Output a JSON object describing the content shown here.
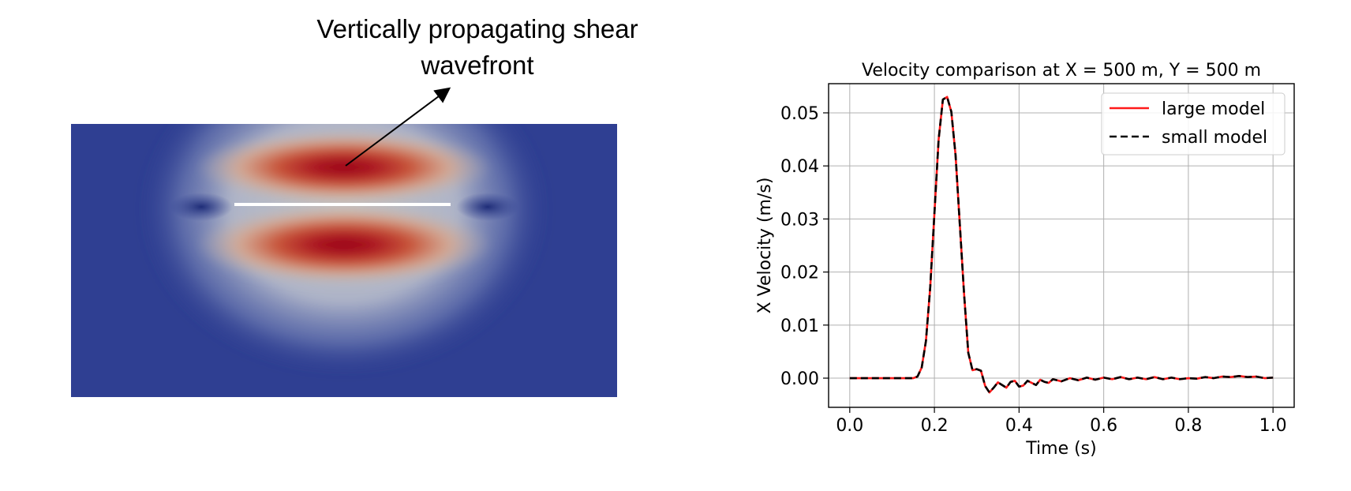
{
  "annotation": {
    "line1": "Vertically propagating shear",
    "line2": "wavefront"
  },
  "colors": {
    "field_low": "#2f3f92",
    "field_mid": "#bdbdbd",
    "field_high": "#99001f",
    "large_model": "#ff1a1a",
    "small_model": "#000000",
    "grid": "#b0b0b0"
  },
  "chart_data": {
    "type": "line",
    "title": "Velocity comparison at X = 500 m, Y = 500 m",
    "xlabel": "Time (s)",
    "ylabel": "X Velocity (m/s)",
    "xlim": [
      -0.05,
      1.05
    ],
    "ylim": [
      -0.0055,
      0.0555
    ],
    "xticks": [
      0.0,
      0.2,
      0.4,
      0.6,
      0.8,
      1.0
    ],
    "xtick_labels": [
      "0.0",
      "0.2",
      "0.4",
      "0.6",
      "0.8",
      "1.0"
    ],
    "yticks": [
      0.0,
      0.01,
      0.02,
      0.03,
      0.04,
      0.05
    ],
    "ytick_labels": [
      "0.00",
      "0.01",
      "0.02",
      "0.03",
      "0.04",
      "0.05"
    ],
    "grid": true,
    "legend_position": "top-right",
    "x": [
      0.0,
      0.02,
      0.04,
      0.06,
      0.08,
      0.1,
      0.12,
      0.14,
      0.15,
      0.16,
      0.17,
      0.18,
      0.19,
      0.2,
      0.21,
      0.22,
      0.23,
      0.24,
      0.25,
      0.26,
      0.27,
      0.28,
      0.29,
      0.3,
      0.31,
      0.32,
      0.33,
      0.34,
      0.35,
      0.36,
      0.37,
      0.38,
      0.39,
      0.4,
      0.41,
      0.42,
      0.43,
      0.44,
      0.45,
      0.46,
      0.47,
      0.48,
      0.49,
      0.5,
      0.52,
      0.54,
      0.56,
      0.58,
      0.6,
      0.62,
      0.64,
      0.66,
      0.68,
      0.7,
      0.72,
      0.74,
      0.76,
      0.78,
      0.8,
      0.82,
      0.84,
      0.86,
      0.88,
      0.9,
      0.92,
      0.94,
      0.96,
      0.98,
      1.0
    ],
    "series": [
      {
        "name": "large model",
        "style": "solid",
        "values": [
          0.0,
          0.0,
          0.0,
          0.0,
          0.0,
          0.0,
          0.0,
          0.0,
          0.0,
          0.0003,
          0.002,
          0.007,
          0.017,
          0.031,
          0.045,
          0.0525,
          0.053,
          0.0502,
          0.042,
          0.029,
          0.016,
          0.0048,
          0.0015,
          0.0017,
          0.0014,
          -0.0015,
          -0.0027,
          -0.0018,
          -0.0008,
          -0.0013,
          -0.0018,
          -0.0007,
          -0.0005,
          -0.0016,
          -0.0014,
          -0.0005,
          -0.0009,
          -0.0013,
          -0.0003,
          -0.0007,
          -0.0009,
          -0.0002,
          -0.0004,
          -0.0006,
          0.0,
          -0.0004,
          0.0001,
          -0.0003,
          0.0001,
          -0.0002,
          0.0002,
          -0.0002,
          0.0001,
          -0.0002,
          0.0002,
          -0.0002,
          0.0001,
          -0.0002,
          0.0,
          -0.0001,
          0.0002,
          0.0,
          0.0003,
          0.0002,
          0.0004,
          0.0002,
          0.0003,
          0.0,
          0.0001
        ]
      },
      {
        "name": "small model",
        "style": "dashed",
        "values": [
          0.0,
          0.0,
          0.0,
          0.0,
          0.0,
          0.0,
          0.0,
          0.0,
          0.0,
          0.0003,
          0.002,
          0.007,
          0.017,
          0.031,
          0.045,
          0.0525,
          0.053,
          0.0502,
          0.042,
          0.029,
          0.016,
          0.0048,
          0.0015,
          0.0017,
          0.0014,
          -0.0015,
          -0.0027,
          -0.0018,
          -0.0008,
          -0.0013,
          -0.0018,
          -0.0007,
          -0.0005,
          -0.0016,
          -0.0014,
          -0.0005,
          -0.0009,
          -0.0013,
          -0.0003,
          -0.0007,
          -0.0009,
          -0.0002,
          -0.0004,
          -0.0006,
          0.0,
          -0.0004,
          0.0001,
          -0.0003,
          0.0001,
          -0.0002,
          0.0002,
          -0.0002,
          0.0001,
          -0.0002,
          0.0002,
          -0.0002,
          0.0001,
          -0.0002,
          0.0,
          -0.0001,
          0.0002,
          0.0,
          0.0003,
          0.0002,
          0.0004,
          0.0002,
          0.0003,
          0.0,
          0.0001
        ]
      }
    ]
  }
}
